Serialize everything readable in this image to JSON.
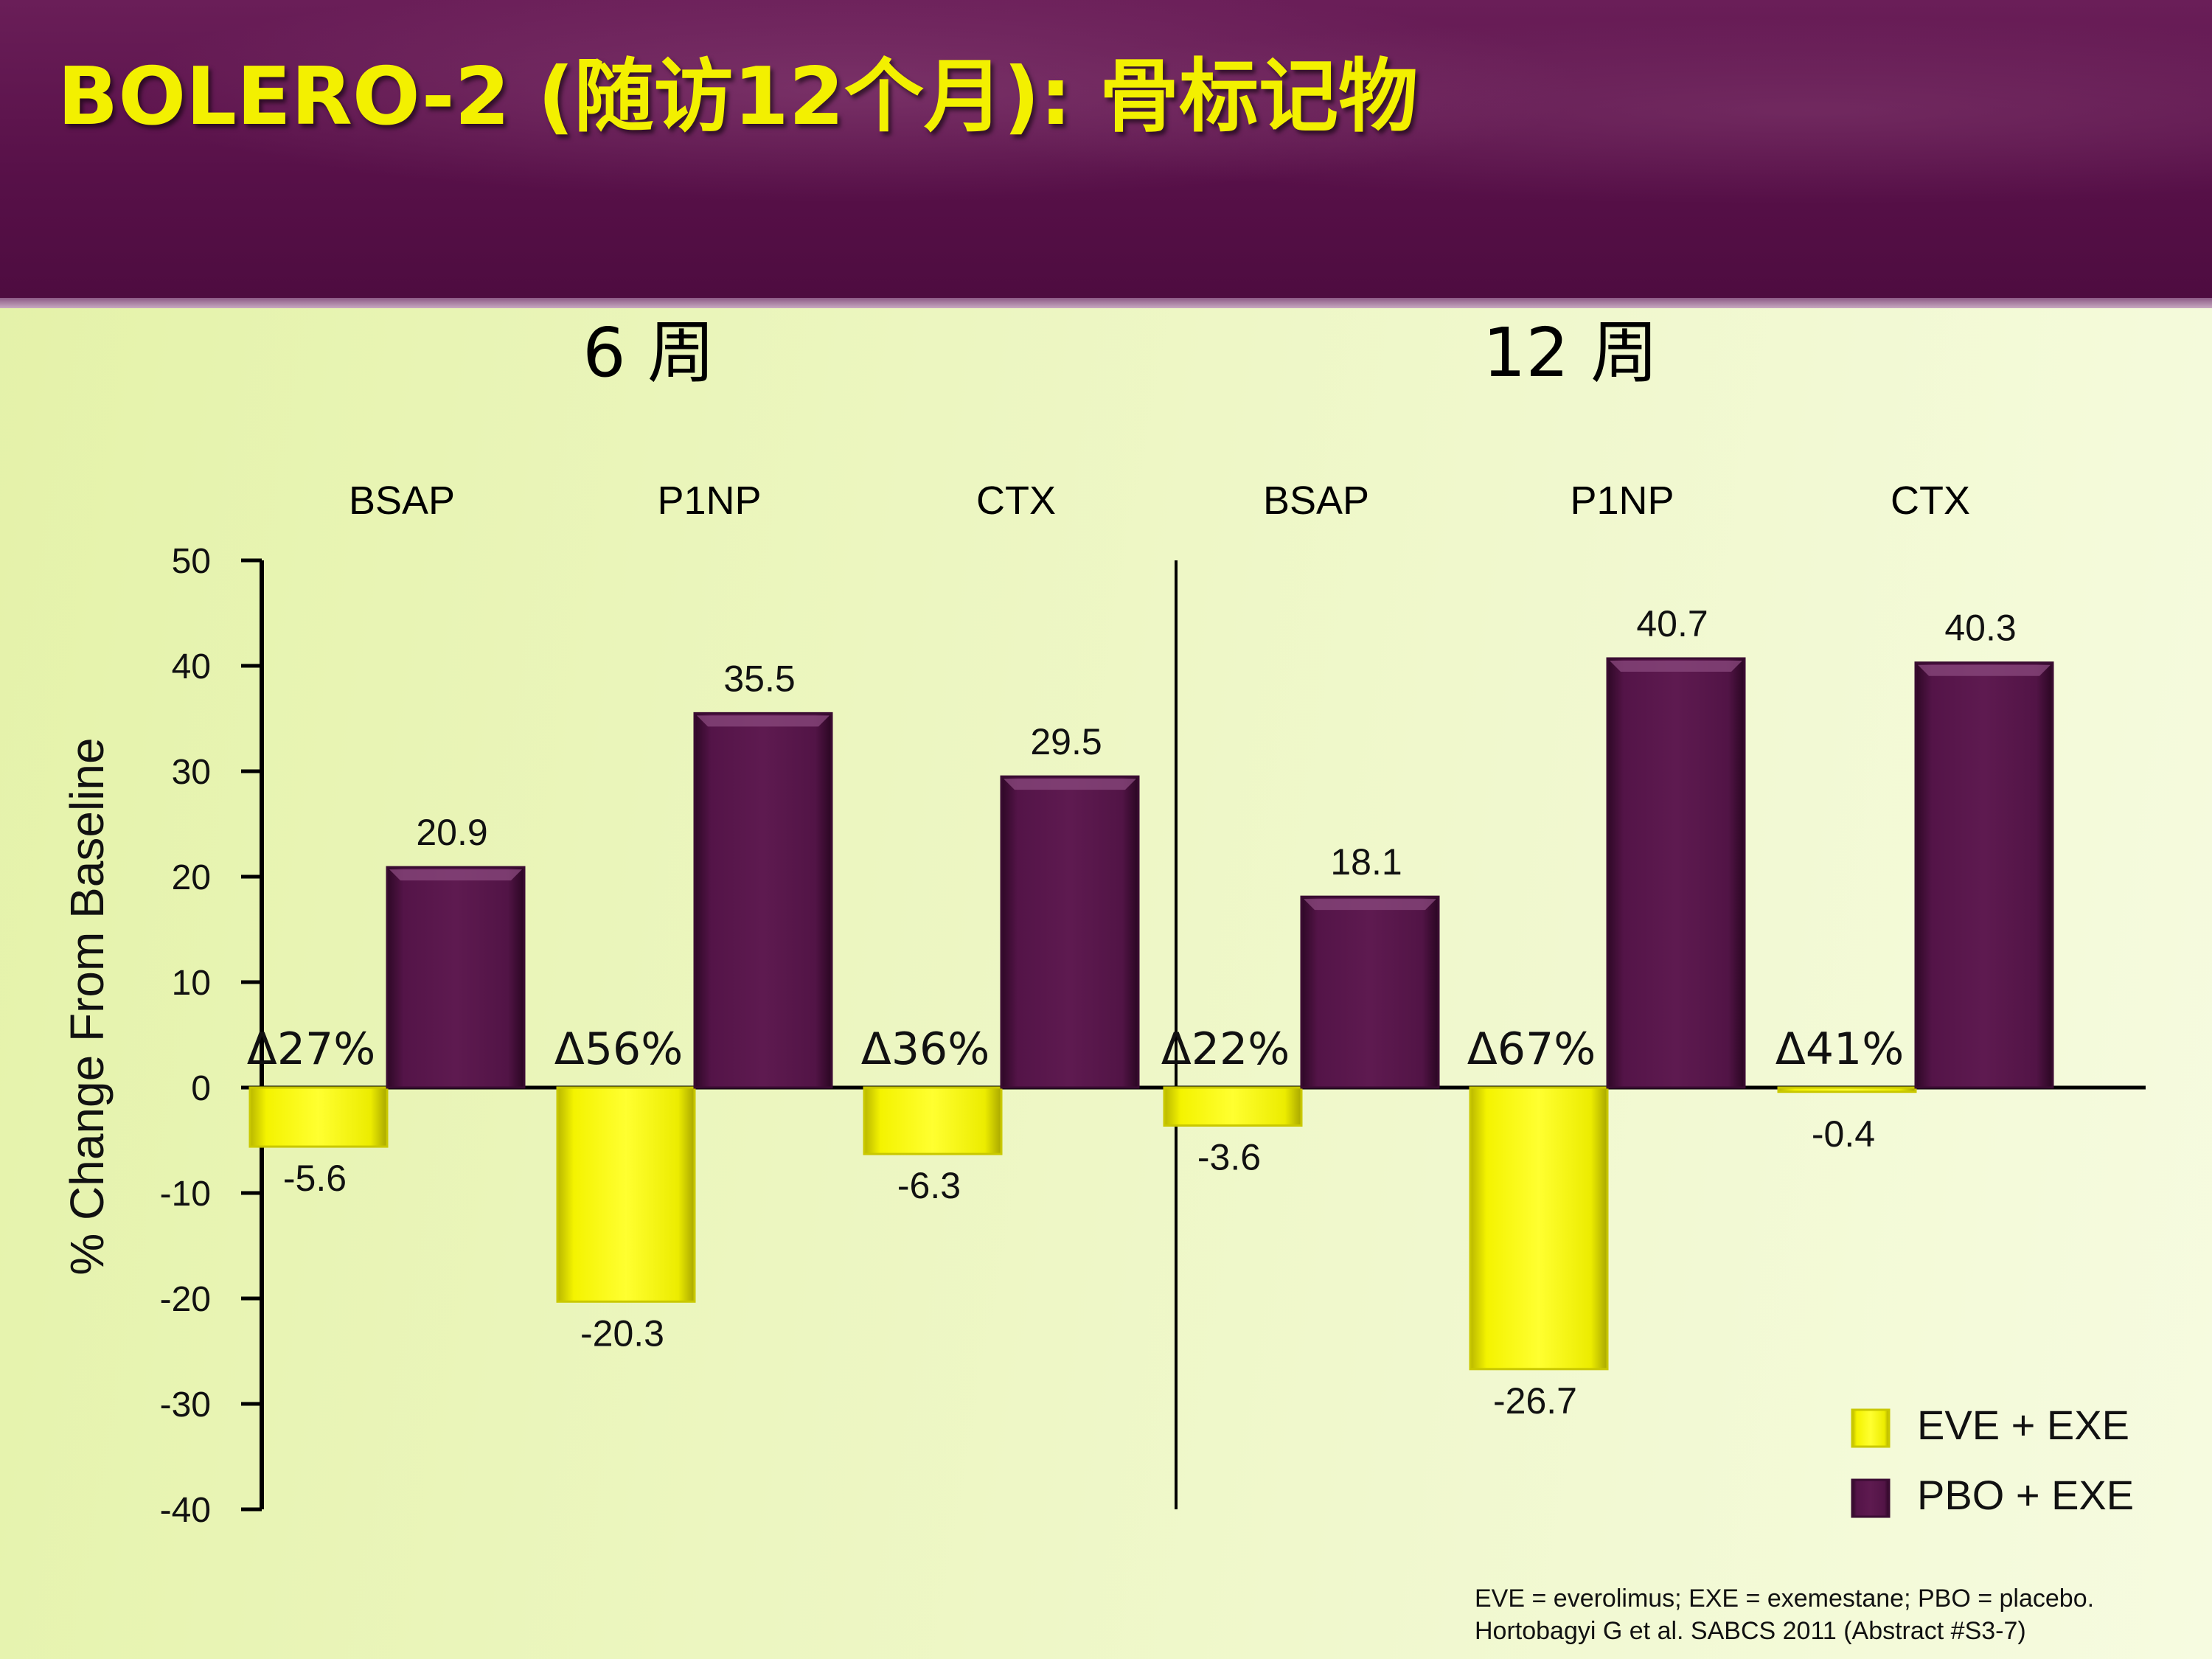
{
  "title": "BOLERO-2 (随访12个月): 骨标记物",
  "footnote": {
    "line1": "EVE = everolimus; EXE = exemestane; PBO = placebo.",
    "line2": "Hortobagyi G et al. SABCS 2011 (Abstract #S3-7)"
  },
  "colors": {
    "banner": "#571048",
    "title": "#f3f000",
    "eve_bar": "#eef000",
    "pbo_bar": "#5a1a4c"
  },
  "chart_data": {
    "type": "bar",
    "ylabel": "% Change From Baseline",
    "ylim": [
      -40,
      50
    ],
    "yticks": [
      50,
      40,
      30,
      20,
      10,
      0,
      -10,
      -20,
      -30,
      -40
    ],
    "groups": [
      {
        "label": "6 周",
        "categories": [
          {
            "name": "BSAP",
            "eve": -5.6,
            "pbo": 20.9,
            "delta": "Δ27%"
          },
          {
            "name": "P1NP",
            "eve": -20.3,
            "pbo": 35.5,
            "delta": "Δ56%"
          },
          {
            "name": "CTX",
            "eve": -6.3,
            "pbo": 29.5,
            "delta": "Δ36%"
          }
        ]
      },
      {
        "label": "12 周",
        "categories": [
          {
            "name": "BSAP",
            "eve": -3.6,
            "pbo": 18.1,
            "delta": "Δ22%"
          },
          {
            "name": "P1NP",
            "eve": -26.7,
            "pbo": 40.7,
            "delta": "Δ67%"
          },
          {
            "name": "CTX",
            "eve": -0.4,
            "pbo": 40.3,
            "delta": "Δ41%"
          }
        ]
      }
    ],
    "series": [
      {
        "key": "eve",
        "name": "EVE + EXE"
      },
      {
        "key": "pbo",
        "name": "PBO + EXE"
      }
    ],
    "legend": "bottom-right"
  }
}
